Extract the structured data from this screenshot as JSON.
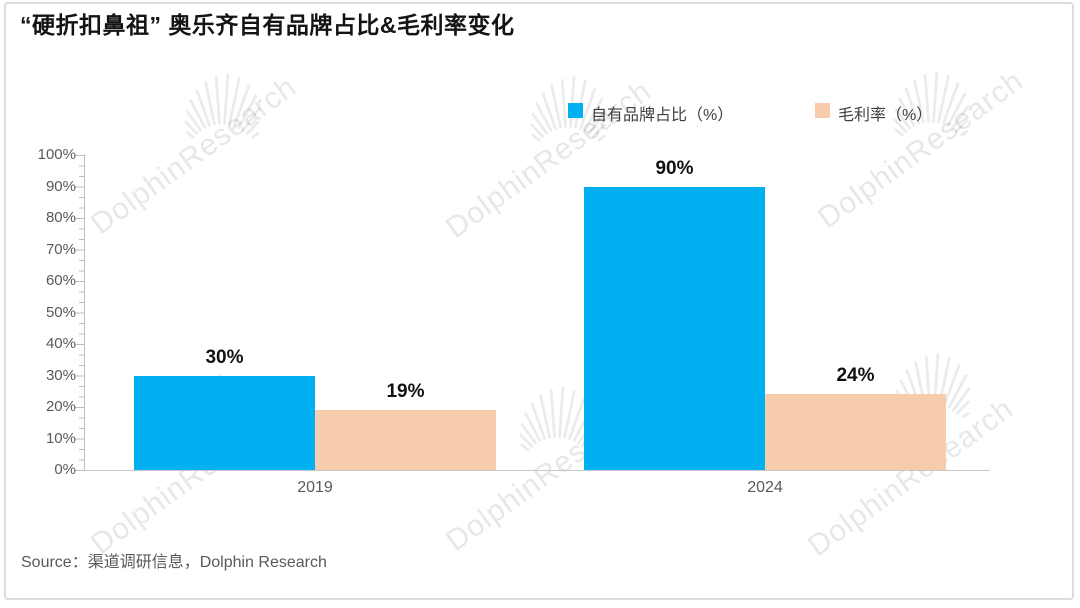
{
  "page": {
    "title": "“硬折扣鼻祖” 奥乐齐自有品牌占比&毛利率变化",
    "source": "Source：渠道调研信息，Dolphin Research",
    "watermark_text": "DolphinResearch"
  },
  "chart_data": {
    "type": "bar",
    "title": "“硬折扣鼻祖” 奥乐齐自有品牌占比&毛利率变化",
    "categories": [
      "2019",
      "2024"
    ],
    "series": [
      {
        "name": "自有品牌占比（%）",
        "color": "#00B0F0",
        "values": [
          30,
          90
        ],
        "labels": [
          "30%",
          "90%"
        ]
      },
      {
        "name": "毛利率（%）",
        "color": "#F8CBAD",
        "values": [
          19,
          24
        ],
        "labels": [
          "19%",
          "24%"
        ]
      }
    ],
    "xlabel": "",
    "ylabel": "",
    "ylim": [
      0,
      100
    ],
    "yticks": [
      "0%",
      "10%",
      "20%",
      "30%",
      "40%",
      "50%",
      "60%",
      "70%",
      "80%",
      "90%",
      "100%"
    ],
    "grid": false,
    "legend_position": "top",
    "source": "Source：渠道调研信息，Dolphin Research"
  }
}
